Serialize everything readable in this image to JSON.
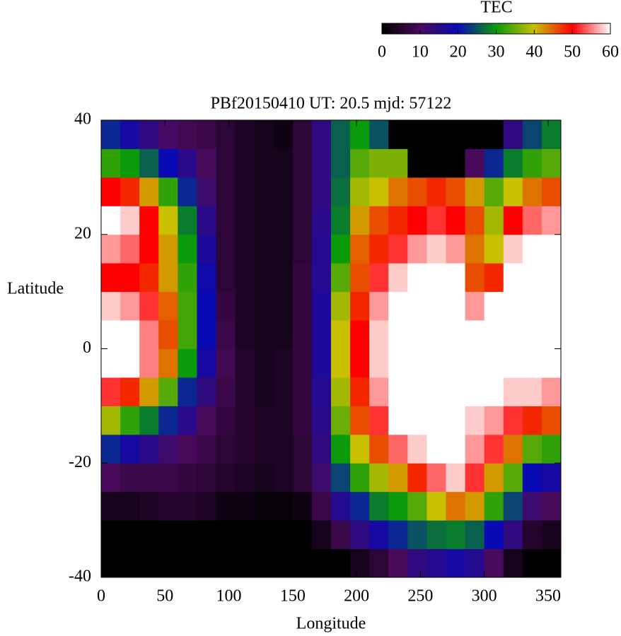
{
  "chart_data": {
    "type": "heatmap",
    "title": "PBf20150410  UT: 20.5  mjd: 57122",
    "x_label": "Longitude",
    "y_label": "Latitude",
    "colorbar_label": "TEC",
    "xlim": [
      0,
      360
    ],
    "ylim": [
      -40,
      40
    ],
    "xticks": [
      0,
      50,
      100,
      150,
      200,
      250,
      300,
      350
    ],
    "yticks": [
      -40,
      -20,
      0,
      20,
      40
    ],
    "clim": [
      0,
      60
    ],
    "cticks": [
      0,
      10,
      20,
      30,
      40,
      50,
      60
    ],
    "colorscale": [
      "#000000",
      "#4a0a5c",
      "#0a0ab4",
      "#0a9a0a",
      "#c8c000",
      "#ff0000",
      "#ffffff"
    ],
    "x": [
      7.5,
      22.5,
      37.5,
      52.5,
      67.5,
      82.5,
      97.5,
      112.5,
      127.5,
      142.5,
      157.5,
      172.5,
      187.5,
      202.5,
      217.5,
      232.5,
      247.5,
      262.5,
      277.5,
      292.5,
      307.5,
      322.5,
      337.5,
      352.5
    ],
    "y": [
      -37.5,
      -32.5,
      -27.5,
      -22.5,
      -17.5,
      -12.5,
      -7.5,
      -2.5,
      2.5,
      7.5,
      12.5,
      17.5,
      22.5,
      27.5,
      32.5,
      37.5
    ],
    "z": [
      [
        0,
        0,
        3,
        10,
        22,
        38,
        52,
        60,
        60,
        58,
        50,
        56,
        60,
        50,
        32,
        22
      ],
      [
        0,
        0,
        3,
        8,
        18,
        32,
        48,
        60,
        60,
        56,
        50,
        54,
        58,
        48,
        30,
        18
      ],
      [
        0,
        0,
        4,
        8,
        15,
        28,
        42,
        55,
        55,
        52,
        48,
        50,
        50,
        42,
        26,
        14
      ],
      [
        0,
        0,
        5,
        8,
        12,
        22,
        34,
        44,
        46,
        45,
        42,
        42,
        40,
        32,
        20,
        11
      ],
      [
        0,
        0,
        5,
        7,
        10,
        15,
        22,
        30,
        33,
        33,
        32,
        30,
        28,
        22,
        15,
        9
      ],
      [
        0,
        0,
        4,
        6,
        8,
        10,
        14,
        18,
        20,
        20,
        19,
        17,
        15,
        12,
        10,
        8
      ],
      [
        0,
        0,
        2,
        5,
        6,
        7,
        8,
        9,
        8,
        7,
        6,
        6,
        6,
        6,
        6,
        6
      ],
      [
        0,
        0,
        2,
        4,
        5,
        5,
        5,
        5,
        4,
        4,
        4,
        4,
        4,
        4,
        4,
        4
      ],
      [
        0,
        0,
        1,
        3,
        4,
        4,
        3,
        3,
        3,
        3,
        3,
        3,
        3,
        3,
        3,
        3
      ],
      [
        0,
        0,
        1,
        4,
        4,
        4,
        4,
        4,
        3,
        3,
        3,
        3,
        3,
        3,
        3,
        2
      ],
      [
        0,
        0,
        2,
        6,
        6,
        7,
        7,
        7,
        7,
        7,
        7,
        6,
        6,
        6,
        6,
        6
      ],
      [
        0,
        3,
        8,
        12,
        14,
        15,
        16,
        17,
        17,
        17,
        16,
        16,
        15,
        14,
        14,
        14
      ],
      [
        0,
        8,
        16,
        24,
        30,
        35,
        38,
        40,
        40,
        38,
        34,
        30,
        28,
        27,
        26,
        26
      ],
      [
        3,
        14,
        22,
        32,
        40,
        46,
        48,
        50,
        50,
        48,
        46,
        45,
        42,
        38,
        34,
        30
      ],
      [
        6,
        18,
        28,
        38,
        46,
        52,
        56,
        58,
        58,
        56,
        52,
        48,
        46,
        40,
        36,
        25
      ],
      [
        10,
        22,
        30,
        42,
        54,
        60,
        60,
        60,
        60,
        60,
        58,
        52,
        48,
        44,
        36,
        0
      ],
      [
        14,
        25,
        34,
        48,
        58,
        60,
        60,
        60,
        60,
        60,
        60,
        56,
        50,
        46,
        0,
        0
      ],
      [
        16,
        27,
        40,
        54,
        60,
        60,
        60,
        60,
        60,
        60,
        60,
        58,
        52,
        48,
        0,
        0
      ],
      [
        18,
        28,
        44,
        58,
        60,
        60,
        60,
        60,
        60,
        60,
        60,
        56,
        50,
        46,
        0,
        0
      ],
      [
        16,
        26,
        42,
        52,
        56,
        58,
        60,
        60,
        60,
        56,
        46,
        44,
        46,
        42,
        10,
        0
      ],
      [
        10,
        20,
        32,
        42,
        52,
        56,
        60,
        60,
        60,
        60,
        48,
        40,
        38,
        34,
        22,
        0
      ],
      [
        3,
        14,
        24,
        34,
        44,
        52,
        58,
        60,
        60,
        60,
        60,
        58,
        50,
        40,
        28,
        14
      ],
      [
        0,
        5,
        12,
        20,
        34,
        48,
        58,
        60,
        60,
        60,
        60,
        60,
        54,
        44,
        32,
        24
      ],
      [
        0,
        3,
        10,
        18,
        32,
        46,
        56,
        60,
        60,
        60,
        60,
        60,
        56,
        46,
        34,
        28
      ]
    ]
  }
}
